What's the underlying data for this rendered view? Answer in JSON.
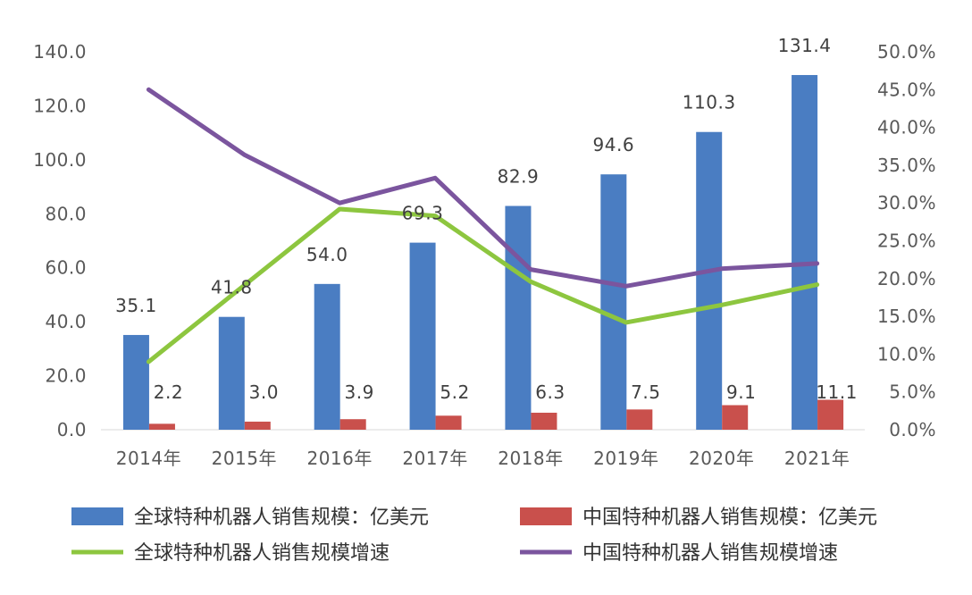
{
  "chart_data": {
    "type": "bar",
    "categories": [
      "2014年",
      "2015年",
      "2016年",
      "2017年",
      "2018年",
      "2019年",
      "2020年",
      "2021年"
    ],
    "series": [
      {
        "name": "全球特种机器人销售规模：亿美元",
        "kind": "bar",
        "axis": "left",
        "color": "#4A7DC2",
        "values": [
          35.1,
          41.8,
          54.0,
          69.3,
          82.9,
          94.6,
          110.3,
          131.4
        ],
        "labels": [
          "35.1",
          "41.8",
          "54.0",
          "69.3",
          "82.9",
          "94.6",
          "110.3",
          "131.4"
        ]
      },
      {
        "name": "中国特种机器人销售规模：亿美元",
        "kind": "bar",
        "axis": "left",
        "color": "#C9504C",
        "values": [
          2.2,
          3.0,
          3.9,
          5.2,
          6.3,
          7.5,
          9.1,
          11.1
        ],
        "labels": [
          "2.2",
          "3.0",
          "3.9",
          "5.2",
          "6.3",
          "7.5",
          "9.1",
          "11.1"
        ]
      },
      {
        "name": "全球特种机器人销售规模增速",
        "kind": "line",
        "axis": "right",
        "color": "#8DC63F",
        "values": [
          9.0,
          19.1,
          29.2,
          28.3,
          19.6,
          14.2,
          16.5,
          19.2
        ]
      },
      {
        "name": "中国特种机器人销售规模增速",
        "kind": "line",
        "axis": "right",
        "color": "#7B559E",
        "values": [
          45.0,
          36.4,
          30.0,
          33.3,
          21.2,
          19.0,
          21.3,
          22.0
        ]
      }
    ],
    "left_axis": {
      "ylim": [
        0,
        140
      ],
      "ticks": [
        "0.0",
        "20.0",
        "40.0",
        "60.0",
        "80.0",
        "100.0",
        "120.0",
        "140.0"
      ]
    },
    "right_axis": {
      "ylim": [
        0,
        50
      ],
      "ticks": [
        "0.0%",
        "5.0%",
        "10.0%",
        "15.0%",
        "20.0%",
        "25.0%",
        "30.0%",
        "35.0%",
        "40.0%",
        "45.0%",
        "50.0%"
      ]
    },
    "grid": false,
    "legend_position": "bottom"
  }
}
